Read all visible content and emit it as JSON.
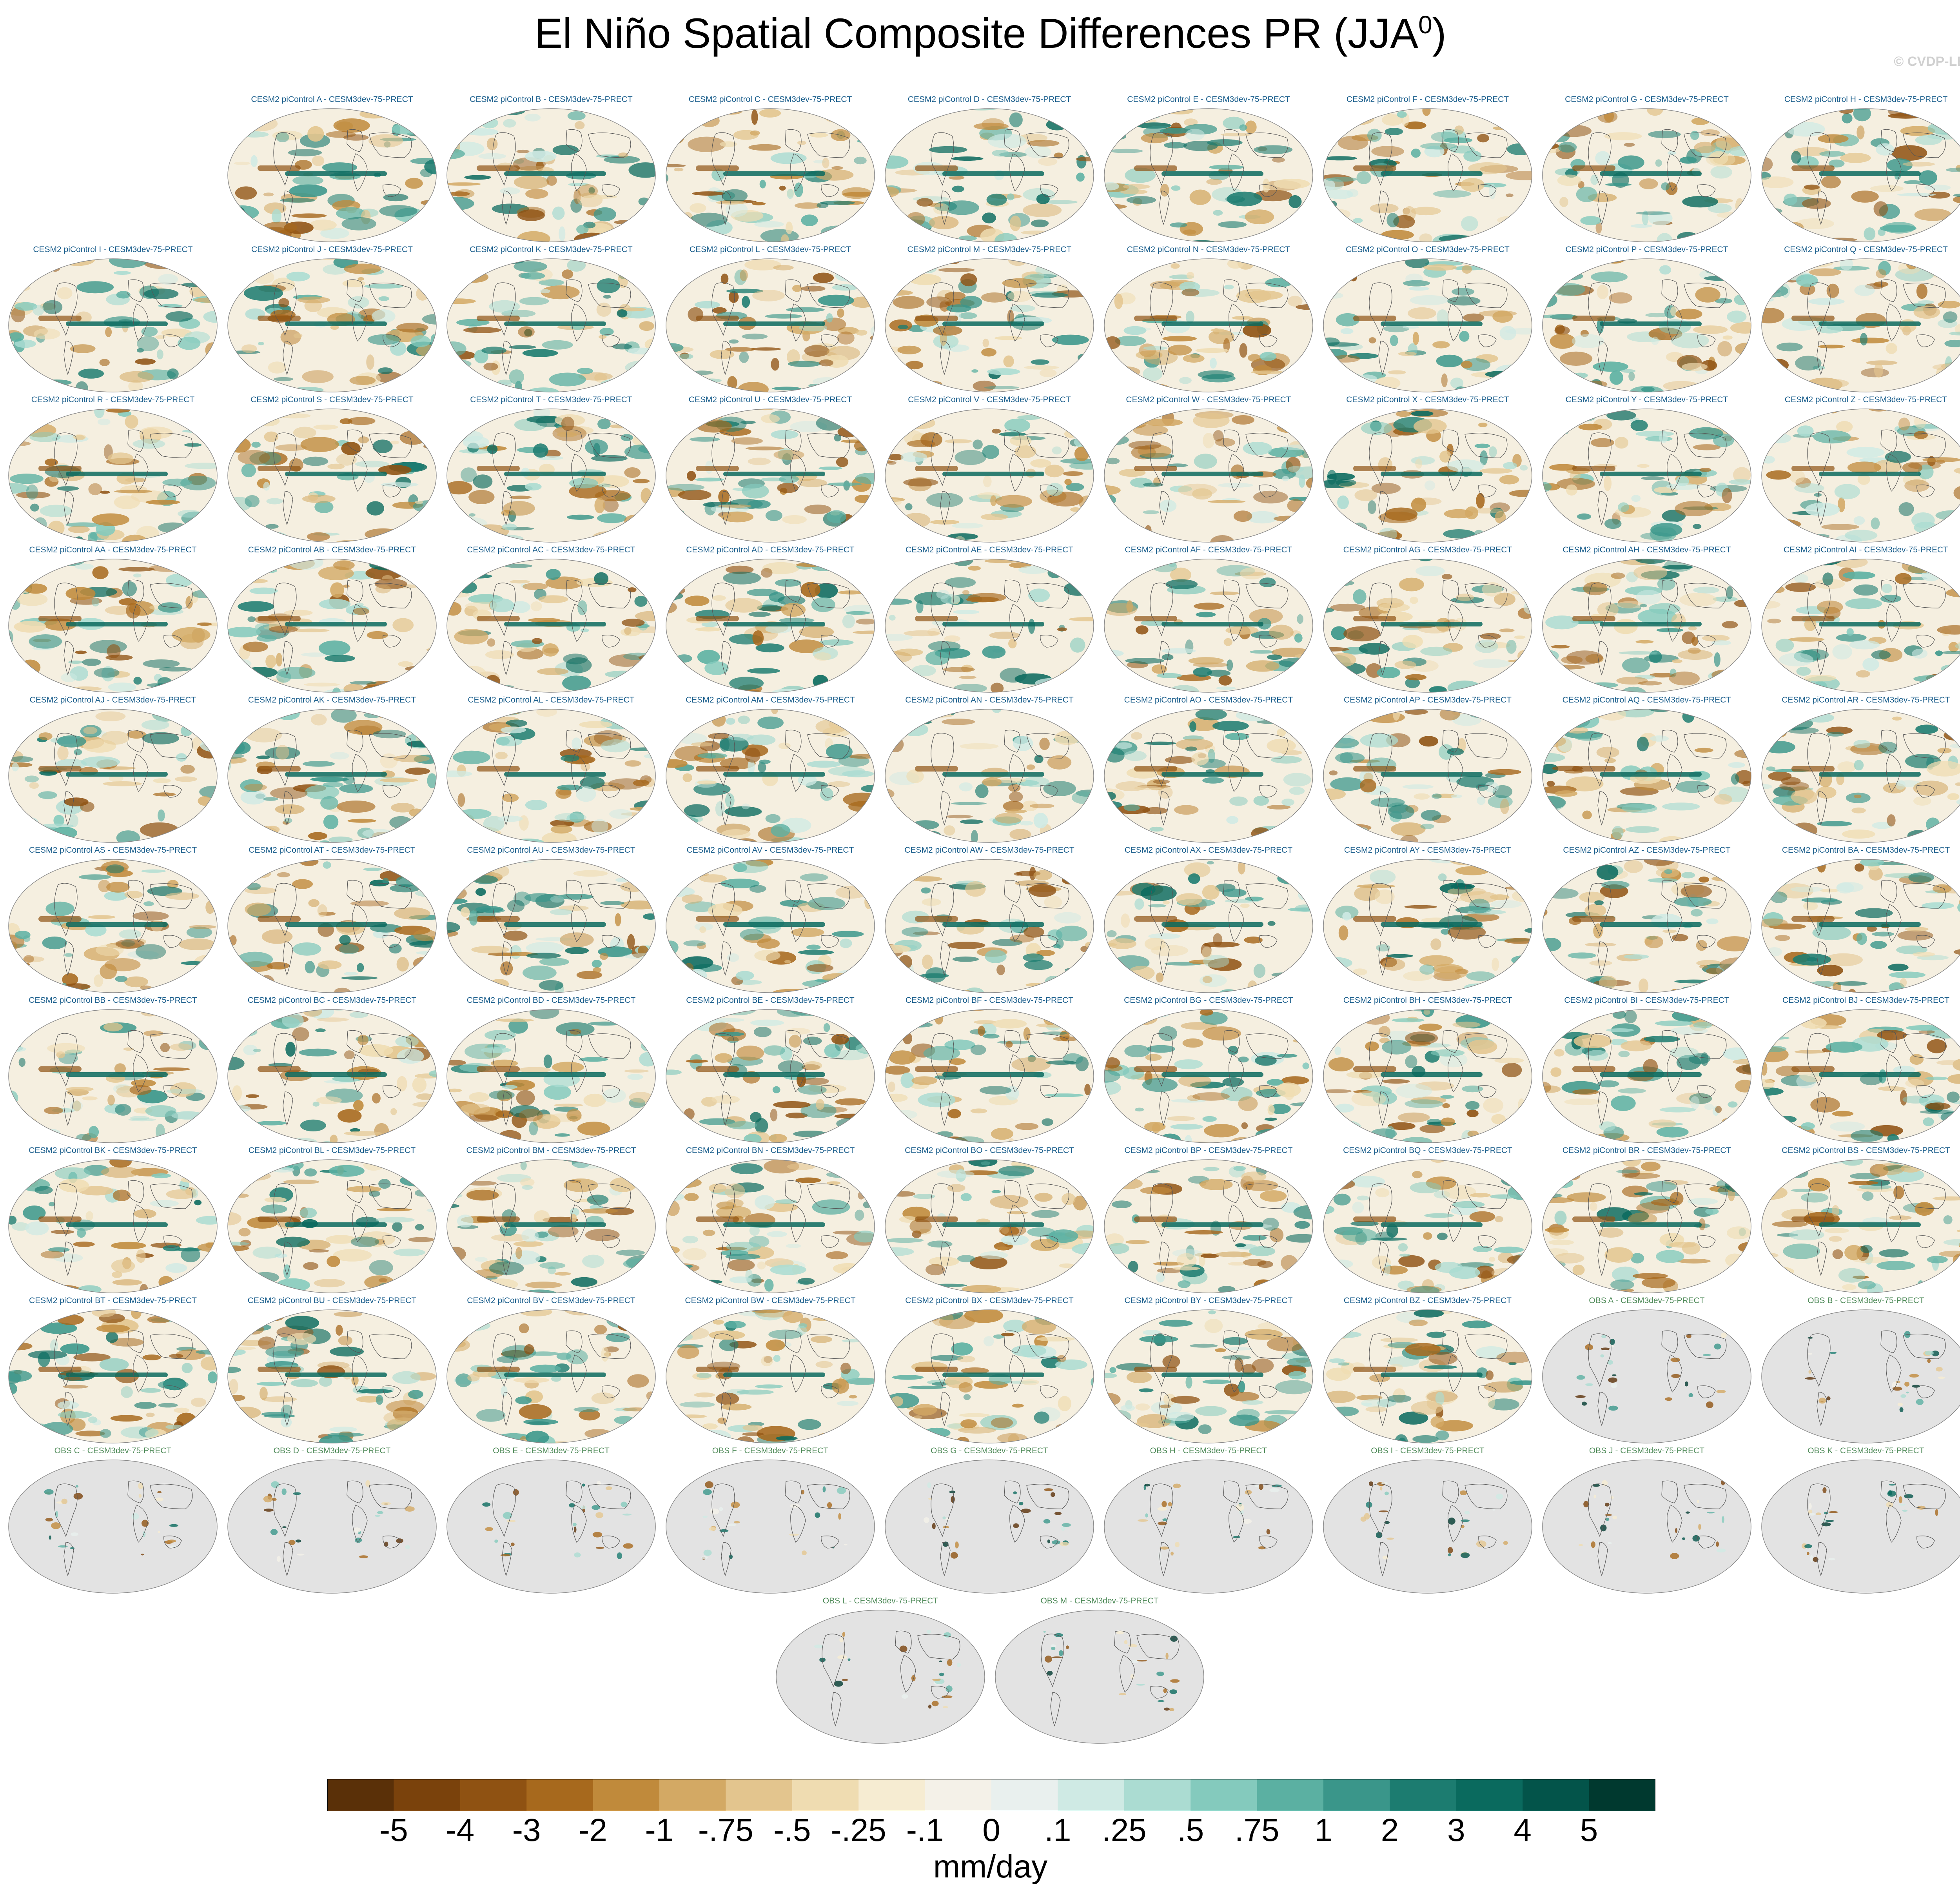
{
  "title": "El Niño Spatial Composite Differences PR (JJA",
  "title_superscript": "0",
  "title_suffix": ")",
  "watermark": "© CVDP-LE",
  "chart_data": {
    "type": "heatmap",
    "description_kind": "map panels grid",
    "panels": [
      {
        "title": "CESM2 piControl A - CESM3dev-75-PRECT",
        "source": "cesm"
      },
      {
        "title": "CESM2 piControl B - CESM3dev-75-PRECT",
        "source": "cesm"
      },
      {
        "title": "CESM2 piControl C - CESM3dev-75-PRECT",
        "source": "cesm"
      },
      {
        "title": "CESM2 piControl D - CESM3dev-75-PRECT",
        "source": "cesm"
      },
      {
        "title": "CESM2 piControl E - CESM3dev-75-PRECT",
        "source": "cesm"
      },
      {
        "title": "CESM2 piControl F - CESM3dev-75-PRECT",
        "source": "cesm"
      },
      {
        "title": "CESM2 piControl G - CESM3dev-75-PRECT",
        "source": "cesm"
      },
      {
        "title": "CESM2 piControl H - CESM3dev-75-PRECT",
        "source": "cesm"
      },
      {
        "title": "CESM2 piControl I - CESM3dev-75-PRECT",
        "source": "cesm"
      },
      {
        "title": "CESM2 piControl J - CESM3dev-75-PRECT",
        "source": "cesm"
      },
      {
        "title": "CESM2 piControl K - CESM3dev-75-PRECT",
        "source": "cesm"
      },
      {
        "title": "CESM2 piControl L - CESM3dev-75-PRECT",
        "source": "cesm"
      },
      {
        "title": "CESM2 piControl M - CESM3dev-75-PRECT",
        "source": "cesm"
      },
      {
        "title": "CESM2 piControl N - CESM3dev-75-PRECT",
        "source": "cesm"
      },
      {
        "title": "CESM2 piControl O - CESM3dev-75-PRECT",
        "source": "cesm"
      },
      {
        "title": "CESM2 piControl P - CESM3dev-75-PRECT",
        "source": "cesm"
      },
      {
        "title": "CESM2 piControl Q - CESM3dev-75-PRECT",
        "source": "cesm"
      },
      {
        "title": "CESM2 piControl R - CESM3dev-75-PRECT",
        "source": "cesm"
      },
      {
        "title": "CESM2 piControl S - CESM3dev-75-PRECT",
        "source": "cesm"
      },
      {
        "title": "CESM2 piControl T - CESM3dev-75-PRECT",
        "source": "cesm"
      },
      {
        "title": "CESM2 piControl U - CESM3dev-75-PRECT",
        "source": "cesm"
      },
      {
        "title": "CESM2 piControl V - CESM3dev-75-PRECT",
        "source": "cesm"
      },
      {
        "title": "CESM2 piControl W - CESM3dev-75-PRECT",
        "source": "cesm"
      },
      {
        "title": "CESM2 piControl X - CESM3dev-75-PRECT",
        "source": "cesm"
      },
      {
        "title": "CESM2 piControl Y - CESM3dev-75-PRECT",
        "source": "cesm"
      },
      {
        "title": "CESM2 piControl Z - CESM3dev-75-PRECT",
        "source": "cesm"
      },
      {
        "title": "CESM2 piControl AA - CESM3dev-75-PRECT",
        "source": "cesm"
      },
      {
        "title": "CESM2 piControl AB - CESM3dev-75-PRECT",
        "source": "cesm"
      },
      {
        "title": "CESM2 piControl AC - CESM3dev-75-PRECT",
        "source": "cesm"
      },
      {
        "title": "CESM2 piControl AD - CESM3dev-75-PRECT",
        "source": "cesm"
      },
      {
        "title": "CESM2 piControl AE - CESM3dev-75-PRECT",
        "source": "cesm"
      },
      {
        "title": "CESM2 piControl AF - CESM3dev-75-PRECT",
        "source": "cesm"
      },
      {
        "title": "CESM2 piControl AG - CESM3dev-75-PRECT",
        "source": "cesm"
      },
      {
        "title": "CESM2 piControl AH - CESM3dev-75-PRECT",
        "source": "cesm"
      },
      {
        "title": "CESM2 piControl AI - CESM3dev-75-PRECT",
        "source": "cesm"
      },
      {
        "title": "CESM2 piControl AJ - CESM3dev-75-PRECT",
        "source": "cesm"
      },
      {
        "title": "CESM2 piControl AK - CESM3dev-75-PRECT",
        "source": "cesm"
      },
      {
        "title": "CESM2 piControl AL - CESM3dev-75-PRECT",
        "source": "cesm"
      },
      {
        "title": "CESM2 piControl AM - CESM3dev-75-PRECT",
        "source": "cesm"
      },
      {
        "title": "CESM2 piControl AN - CESM3dev-75-PRECT",
        "source": "cesm"
      },
      {
        "title": "CESM2 piControl AO - CESM3dev-75-PRECT",
        "source": "cesm"
      },
      {
        "title": "CESM2 piControl AP - CESM3dev-75-PRECT",
        "source": "cesm"
      },
      {
        "title": "CESM2 piControl AQ - CESM3dev-75-PRECT",
        "source": "cesm"
      },
      {
        "title": "CESM2 piControl AR - CESM3dev-75-PRECT",
        "source": "cesm"
      },
      {
        "title": "CESM2 piControl AS - CESM3dev-75-PRECT",
        "source": "cesm"
      },
      {
        "title": "CESM2 piControl AT - CESM3dev-75-PRECT",
        "source": "cesm"
      },
      {
        "title": "CESM2 piControl AU - CESM3dev-75-PRECT",
        "source": "cesm"
      },
      {
        "title": "CESM2 piControl AV - CESM3dev-75-PRECT",
        "source": "cesm"
      },
      {
        "title": "CESM2 piControl AW - CESM3dev-75-PRECT",
        "source": "cesm"
      },
      {
        "title": "CESM2 piControl AX - CESM3dev-75-PRECT",
        "source": "cesm"
      },
      {
        "title": "CESM2 piControl AY - CESM3dev-75-PRECT",
        "source": "cesm"
      },
      {
        "title": "CESM2 piControl AZ - CESM3dev-75-PRECT",
        "source": "cesm"
      },
      {
        "title": "CESM2 piControl BA - CESM3dev-75-PRECT",
        "source": "cesm"
      },
      {
        "title": "CESM2 piControl BB - CESM3dev-75-PRECT",
        "source": "cesm"
      },
      {
        "title": "CESM2 piControl BC - CESM3dev-75-PRECT",
        "source": "cesm"
      },
      {
        "title": "CESM2 piControl BD - CESM3dev-75-PRECT",
        "source": "cesm"
      },
      {
        "title": "CESM2 piControl BE - CESM3dev-75-PRECT",
        "source": "cesm"
      },
      {
        "title": "CESM2 piControl BF - CESM3dev-75-PRECT",
        "source": "cesm"
      },
      {
        "title": "CESM2 piControl BG - CESM3dev-75-PRECT",
        "source": "cesm"
      },
      {
        "title": "CESM2 piControl BH - CESM3dev-75-PRECT",
        "source": "cesm"
      },
      {
        "title": "CESM2 piControl BI - CESM3dev-75-PRECT",
        "source": "cesm"
      },
      {
        "title": "CESM2 piControl BJ - CESM3dev-75-PRECT",
        "source": "cesm"
      },
      {
        "title": "CESM2 piControl BK - CESM3dev-75-PRECT",
        "source": "cesm"
      },
      {
        "title": "CESM2 piControl BL - CESM3dev-75-PRECT",
        "source": "cesm"
      },
      {
        "title": "CESM2 piControl BM - CESM3dev-75-PRECT",
        "source": "cesm"
      },
      {
        "title": "CESM2 piControl BN - CESM3dev-75-PRECT",
        "source": "cesm"
      },
      {
        "title": "CESM2 piControl BO - CESM3dev-75-PRECT",
        "source": "cesm"
      },
      {
        "title": "CESM2 piControl BP - CESM3dev-75-PRECT",
        "source": "cesm"
      },
      {
        "title": "CESM2 piControl BQ - CESM3dev-75-PRECT",
        "source": "cesm"
      },
      {
        "title": "CESM2 piControl BR - CESM3dev-75-PRECT",
        "source": "cesm"
      },
      {
        "title": "CESM2 piControl BS - CESM3dev-75-PRECT",
        "source": "cesm"
      },
      {
        "title": "CESM2 piControl BT - CESM3dev-75-PRECT",
        "source": "cesm"
      },
      {
        "title": "CESM2 piControl BU - CESM3dev-75-PRECT",
        "source": "cesm"
      },
      {
        "title": "CESM2 piControl BV - CESM3dev-75-PRECT",
        "source": "cesm"
      },
      {
        "title": "CESM2 piControl BW - CESM3dev-75-PRECT",
        "source": "cesm"
      },
      {
        "title": "CESM2 piControl BX - CESM3dev-75-PRECT",
        "source": "cesm"
      },
      {
        "title": "CESM2 piControl BY - CESM3dev-75-PRECT",
        "source": "cesm"
      },
      {
        "title": "CESM2 piControl BZ - CESM3dev-75-PRECT",
        "source": "cesm"
      },
      {
        "title": "OBS A - CESM3dev-75-PRECT",
        "source": "obs"
      },
      {
        "title": "OBS B - CESM3dev-75-PRECT",
        "source": "obs"
      },
      {
        "title": "OBS C - CESM3dev-75-PRECT",
        "source": "obs"
      },
      {
        "title": "OBS D - CESM3dev-75-PRECT",
        "source": "obs"
      },
      {
        "title": "OBS E - CESM3dev-75-PRECT",
        "source": "obs"
      },
      {
        "title": "OBS F - CESM3dev-75-PRECT",
        "source": "obs"
      },
      {
        "title": "OBS G - CESM3dev-75-PRECT",
        "source": "obs"
      },
      {
        "title": "OBS H - CESM3dev-75-PRECT",
        "source": "obs"
      },
      {
        "title": "OBS I - CESM3dev-75-PRECT",
        "source": "obs"
      },
      {
        "title": "OBS J - CESM3dev-75-PRECT",
        "source": "obs"
      },
      {
        "title": "OBS K - CESM3dev-75-PRECT",
        "source": "obs"
      },
      {
        "title": "OBS L - CESM3dev-75-PRECT",
        "source": "obs"
      },
      {
        "title": "OBS M - CESM3dev-75-PRECT",
        "source": "obs"
      }
    ],
    "colorbar": {
      "units": "mm/day",
      "tick_labels": [
        "-5",
        "-4",
        "-3",
        "-2",
        "-1",
        "-.75",
        "-.5",
        "-.25",
        "-.1",
        "0",
        ".1",
        ".25",
        ".5",
        ".75",
        "1",
        "2",
        "3",
        "4",
        "5"
      ],
      "colors": [
        "#5a3008",
        "#7a420c",
        "#8f5212",
        "#a7691d",
        "#c08a3b",
        "#d3a964",
        "#e3c58e",
        "#efdcb1",
        "#f6ecd2",
        "#f4f1e8",
        "#e9f0ee",
        "#cfeae4",
        "#abdcd2",
        "#84cabd",
        "#5bb0a2",
        "#3a968a",
        "#1c7c70",
        "#0a6a5e",
        "#03544a",
        "#00392f"
      ]
    },
    "map_colors": {
      "ocean_bg": "#f5efe0",
      "land_missing": "#e3e3e3",
      "coastline": "#555555"
    }
  }
}
